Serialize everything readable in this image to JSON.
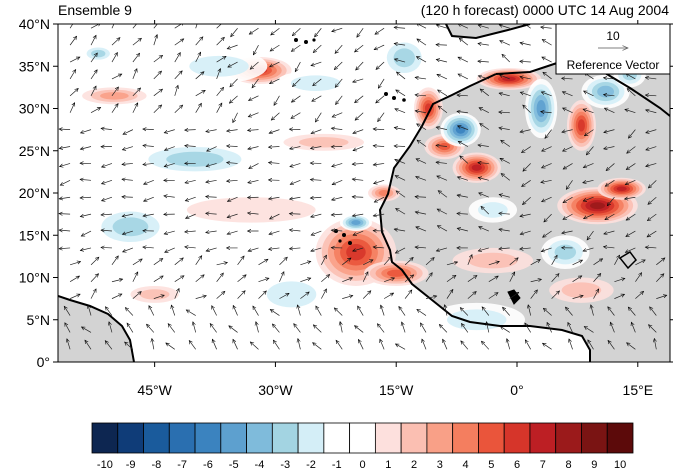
{
  "header": {
    "left_title": "Ensemble 9",
    "right_title": "(120 h forecast) 0000 UTC 14 Aug 2004"
  },
  "map": {
    "lat_ticks": [
      "40°N",
      "35°N",
      "30°N",
      "25°N",
      "20°N",
      "15°N",
      "10°N",
      "5°N",
      "0°"
    ],
    "lon_ticks": [
      "45°W",
      "30°W",
      "15°W",
      "0°",
      "15°E"
    ],
    "extent": {
      "lon": [
        -57,
        19
      ],
      "lat": [
        0,
        40
      ]
    },
    "land_color": "#d3d3d3",
    "reference_vector": {
      "value": "10",
      "label": "Reference Vector"
    },
    "anomaly_regions": [
      {
        "lon": -32,
        "lat": 34.5,
        "value": 6,
        "rx": 4,
        "ry": 1.6
      },
      {
        "lon": -50,
        "lat": 31.5,
        "value": 3,
        "rx": 4,
        "ry": 1.0
      },
      {
        "lon": -11,
        "lat": 30,
        "value": 6,
        "rx": 1.8,
        "ry": 2.5
      },
      {
        "lon": -1,
        "lat": 33.5,
        "value": 7,
        "rx": 4,
        "ry": 1.3
      },
      {
        "lon": -5,
        "lat": 23,
        "value": 7,
        "rx": 3,
        "ry": 1.8
      },
      {
        "lon": 10,
        "lat": 18.5,
        "value": 8,
        "rx": 5,
        "ry": 2.2
      },
      {
        "lon": 8,
        "lat": 28,
        "value": 6,
        "rx": 1.8,
        "ry": 3.0
      },
      {
        "lon": -20,
        "lat": 13,
        "value": 6,
        "rx": 5,
        "ry": 4.0
      },
      {
        "lon": -15,
        "lat": 10.5,
        "value": 5,
        "rx": 4,
        "ry": 1.5
      },
      {
        "lon": -9,
        "lat": 25.5,
        "value": 5,
        "rx": 2.5,
        "ry": 1.5
      },
      {
        "lon": -16.5,
        "lat": 20,
        "value": 4,
        "rx": 2,
        "ry": 1.0
      },
      {
        "lon": 13,
        "lat": 20.5,
        "value": 7,
        "rx": 3,
        "ry": 1.3
      },
      {
        "lon": -24,
        "lat": 26,
        "value": 2,
        "rx": 5,
        "ry": 1.0
      },
      {
        "lon": -3,
        "lat": 12,
        "value": 2,
        "rx": 5,
        "ry": 1.5
      },
      {
        "lon": 8,
        "lat": 8.5,
        "value": 2,
        "rx": 4,
        "ry": 1.5
      },
      {
        "lon": -7,
        "lat": 27.5,
        "value": -6,
        "rx": 2.5,
        "ry": 2.0
      },
      {
        "lon": 3,
        "lat": 30,
        "value": -5,
        "rx": 2,
        "ry": 3.5
      },
      {
        "lon": 11,
        "lat": 32,
        "value": -4,
        "rx": 3,
        "ry": 2.0
      },
      {
        "lon": -20,
        "lat": 16.5,
        "value": -5,
        "rx": 2,
        "ry": 1.0
      },
      {
        "lon": -40,
        "lat": 24,
        "value": -3,
        "rx": 8,
        "ry": 2.0
      },
      {
        "lon": -48,
        "lat": 16,
        "value": -3,
        "rx": 5,
        "ry": 2.5
      },
      {
        "lon": -37,
        "lat": 35,
        "value": -2,
        "rx": 6,
        "ry": 2.0
      },
      {
        "lon": -14,
        "lat": 36,
        "value": -3,
        "rx": 3,
        "ry": 2.5
      },
      {
        "lon": -25,
        "lat": 33,
        "value": -2,
        "rx": 5,
        "ry": 1.5
      },
      {
        "lon": -28,
        "lat": 8,
        "value": -2,
        "rx": 5,
        "ry": 2.5
      },
      {
        "lon": -5,
        "lat": 5,
        "value": -2,
        "rx": 6,
        "ry": 2.0
      },
      {
        "lon": 6,
        "lat": 13,
        "value": -3,
        "rx": 3,
        "ry": 2.0
      },
      {
        "lon": -3,
        "lat": 18,
        "value": -2,
        "rx": 3,
        "ry": 1.5
      },
      {
        "lon": -52,
        "lat": 36.5,
        "value": -3,
        "rx": 2,
        "ry": 1.0
      },
      {
        "lon": 14,
        "lat": 34,
        "value": -3,
        "rx": 2,
        "ry": 1.5
      },
      {
        "lon": -45,
        "lat": 8,
        "value": 2,
        "rx": 3,
        "ry": 1.0
      },
      {
        "lon": -33,
        "lat": 18,
        "value": 1,
        "rx": 8,
        "ry": 1.5
      }
    ]
  },
  "colorbar": {
    "labels": [
      "-10",
      "-9",
      "-8",
      "-7",
      "-6",
      "-5",
      "-4",
      "-3",
      "-2",
      "-1",
      "0",
      "1",
      "2",
      "3",
      "4",
      "5",
      "6",
      "7",
      "8",
      "9",
      "10"
    ],
    "colors": [
      "#0d2651",
      "#0f3c78",
      "#1a5b9c",
      "#2a6fb0",
      "#3b83bf",
      "#5da0cf",
      "#7fbbdb",
      "#a3d4e2",
      "#d4eef7",
      "#ffffff",
      "#ffffff",
      "#fde0dd",
      "#fbbfb2",
      "#f9a087",
      "#f47e5f",
      "#ea553b",
      "#d6352a",
      "#bd1f24",
      "#9b1a1b",
      "#7a1413",
      "#5c0a0a"
    ]
  }
}
